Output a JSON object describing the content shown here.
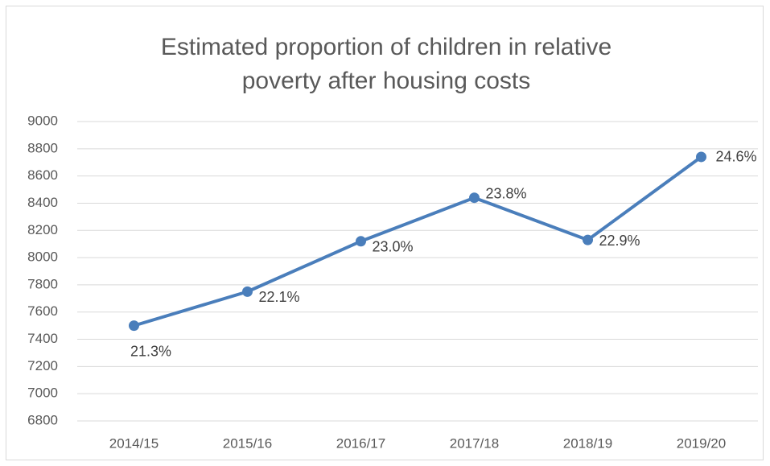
{
  "chart_data": {
    "type": "line",
    "title": "Estimated proportion of children in relative poverty after housing costs",
    "categories": [
      "2014/15",
      "2015/16",
      "2016/17",
      "2017/18",
      "2018/19",
      "2019/20"
    ],
    "values": [
      7500,
      7750,
      8120,
      8440,
      8130,
      8740
    ],
    "point_labels": [
      "21.3%",
      "22.1%",
      "23.0%",
      "23.8%",
      "22.9%",
      "24.6%"
    ],
    "color": "#4a7ebb",
    "ylim": [
      6800,
      9000
    ],
    "yticks": [
      6800,
      7000,
      7200,
      7400,
      7600,
      7800,
      8000,
      8200,
      8400,
      8600,
      8800,
      9000
    ],
    "grid": true
  }
}
